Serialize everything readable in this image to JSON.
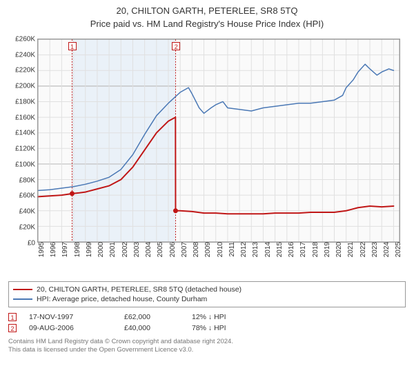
{
  "titles": {
    "line1": "20, CHILTON GARTH, PETERLEE, SR8 5TQ",
    "line2": "Price paid vs. HM Land Registry's House Price Index (HPI)"
  },
  "chart": {
    "type": "line",
    "background_color": "#fafafa",
    "border_color": "#999999",
    "grid_color": "#e0e0e0",
    "plot_fontsize": 10,
    "title_fontsize": 13,
    "x": {
      "min": 1995,
      "max": 2025.5,
      "ticks": [
        1995,
        1996,
        1997,
        1998,
        1999,
        2000,
        2001,
        2002,
        2003,
        2004,
        2005,
        2006,
        2007,
        2008,
        2009,
        2010,
        2011,
        2012,
        2013,
        2014,
        2015,
        2016,
        2017,
        2018,
        2019,
        2020,
        2021,
        2022,
        2023,
        2024,
        2025
      ]
    },
    "y": {
      "min": 0,
      "max": 260000,
      "ticks": [
        0,
        20000,
        40000,
        60000,
        80000,
        100000,
        120000,
        140000,
        160000,
        180000,
        200000,
        220000,
        240000,
        260000
      ],
      "tick_labels": [
        "£0",
        "£20K",
        "£40K",
        "£60K",
        "£80K",
        "£100K",
        "£120K",
        "£140K",
        "£160K",
        "£180K",
        "£200K",
        "£220K",
        "£240K",
        "£260K"
      ],
      "bold_lines": [
        0,
        100000,
        200000
      ]
    },
    "shaded_bands": [
      {
        "from": 1997.88,
        "to": 2006.61,
        "fill": "#eaf1f8"
      }
    ],
    "sale_markers": [
      {
        "n": "1",
        "x": 1997.88,
        "y": 62000,
        "line_color": "#c01616",
        "dot_color": "#c01616"
      },
      {
        "n": "2",
        "x": 2006.61,
        "y": 40000,
        "line_color": "#c01616",
        "dot_color": "#c01616"
      }
    ],
    "series": [
      {
        "id": "property",
        "label": "20, CHILTON GARTH, PETERLEE, SR8 5TQ (detached house)",
        "color": "#c01616",
        "line_width": 2,
        "data": [
          [
            1995,
            58000
          ],
          [
            1996,
            59000
          ],
          [
            1997,
            60000
          ],
          [
            1997.88,
            62000
          ],
          [
            1998.5,
            63000
          ],
          [
            1999,
            64000
          ],
          [
            2000,
            68000
          ],
          [
            2001,
            72000
          ],
          [
            2002,
            80000
          ],
          [
            2003,
            96000
          ],
          [
            2004,
            118000
          ],
          [
            2005,
            140000
          ],
          [
            2006,
            155000
          ],
          [
            2006.6,
            160000
          ],
          [
            2006.61,
            40000
          ],
          [
            2007,
            40000
          ],
          [
            2008,
            39000
          ],
          [
            2009,
            37000
          ],
          [
            2010,
            37000
          ],
          [
            2011,
            36000
          ],
          [
            2012,
            36000
          ],
          [
            2013,
            36000
          ],
          [
            2014,
            36000
          ],
          [
            2015,
            37000
          ],
          [
            2016,
            37000
          ],
          [
            2017,
            37000
          ],
          [
            2018,
            38000
          ],
          [
            2019,
            38000
          ],
          [
            2020,
            38000
          ],
          [
            2021,
            40000
          ],
          [
            2022,
            44000
          ],
          [
            2023,
            46000
          ],
          [
            2024,
            45000
          ],
          [
            2025,
            46000
          ]
        ]
      },
      {
        "id": "hpi",
        "label": "HPI: Average price, detached house, County Durham",
        "color": "#4a78b5",
        "line_width": 1.5,
        "data": [
          [
            1995,
            66000
          ],
          [
            1996,
            67000
          ],
          [
            1997,
            69000
          ],
          [
            1998,
            71000
          ],
          [
            1999,
            74000
          ],
          [
            2000,
            78000
          ],
          [
            2001,
            83000
          ],
          [
            2002,
            93000
          ],
          [
            2003,
            112000
          ],
          [
            2004,
            138000
          ],
          [
            2005,
            162000
          ],
          [
            2006,
            178000
          ],
          [
            2007,
            192000
          ],
          [
            2007.7,
            198000
          ],
          [
            2008,
            190000
          ],
          [
            2008.6,
            172000
          ],
          [
            2009,
            165000
          ],
          [
            2009.6,
            172000
          ],
          [
            2010,
            176000
          ],
          [
            2010.6,
            180000
          ],
          [
            2011,
            172000
          ],
          [
            2012,
            170000
          ],
          [
            2013,
            168000
          ],
          [
            2014,
            172000
          ],
          [
            2015,
            174000
          ],
          [
            2016,
            176000
          ],
          [
            2017,
            178000
          ],
          [
            2018,
            178000
          ],
          [
            2019,
            180000
          ],
          [
            2020,
            182000
          ],
          [
            2020.7,
            188000
          ],
          [
            2021,
            198000
          ],
          [
            2021.6,
            208000
          ],
          [
            2022,
            218000
          ],
          [
            2022.6,
            228000
          ],
          [
            2023,
            222000
          ],
          [
            2023.6,
            214000
          ],
          [
            2024,
            218000
          ],
          [
            2024.6,
            222000
          ],
          [
            2025,
            220000
          ]
        ]
      }
    ]
  },
  "legend": {
    "border_color": "#999999",
    "items": [
      {
        "color": "#c01616",
        "label": "20, CHILTON GARTH, PETERLEE, SR8 5TQ (detached house)"
      },
      {
        "color": "#4a78b5",
        "label": "HPI: Average price, detached house, County Durham"
      }
    ]
  },
  "sales_table": {
    "rows": [
      {
        "n": "1",
        "color": "#c01616",
        "date": "17-NOV-1997",
        "price": "£62,000",
        "delta": "12% ↓ HPI"
      },
      {
        "n": "2",
        "color": "#c01616",
        "date": "09-AUG-2006",
        "price": "£40,000",
        "delta": "78% ↓ HPI"
      }
    ]
  },
  "attribution": {
    "line1": "Contains HM Land Registry data © Crown copyright and database right 2024.",
    "line2": "This data is licensed under the Open Government Licence v3.0."
  }
}
